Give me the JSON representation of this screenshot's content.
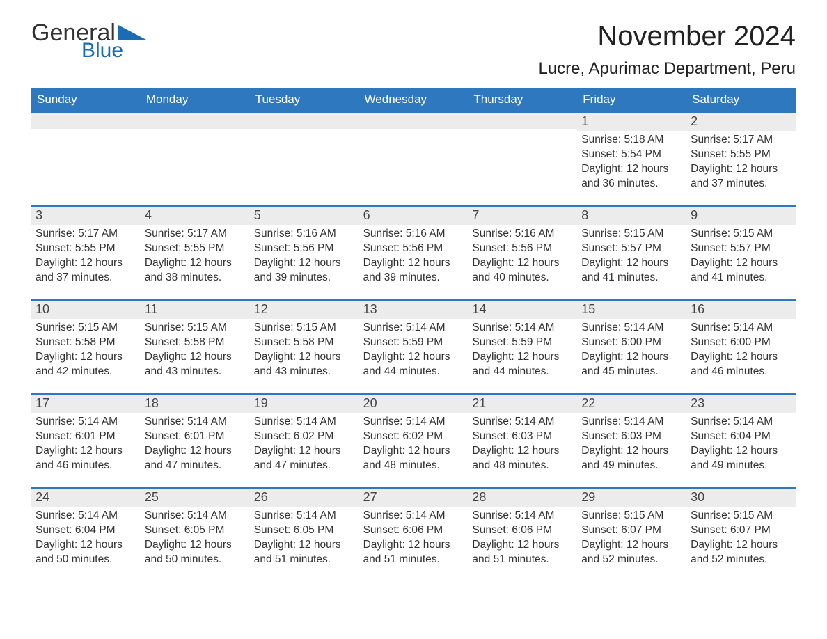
{
  "logo": {
    "word1": "General",
    "word2": "Blue",
    "accent_color": "#1b6cb3"
  },
  "title": "November 2024",
  "location": "Lucre, Apurimac Department, Peru",
  "colors": {
    "header_bg": "#2e78bf",
    "header_text": "#ffffff",
    "row_top_border": "#2e78bf",
    "daynum_bg": "#ececec",
    "text": "#333333",
    "page_bg": "#ffffff"
  },
  "fonts": {
    "title_size": 40,
    "location_size": 24,
    "dow_size": 17,
    "body_size": 15.5
  },
  "days_of_week": [
    "Sunday",
    "Monday",
    "Tuesday",
    "Wednesday",
    "Thursday",
    "Friday",
    "Saturday"
  ],
  "weeks": [
    [
      null,
      null,
      null,
      null,
      null,
      {
        "n": "1",
        "sunrise": "Sunrise: 5:18 AM",
        "sunset": "Sunset: 5:54 PM",
        "day1": "Daylight: 12 hours",
        "day2": "and 36 minutes."
      },
      {
        "n": "2",
        "sunrise": "Sunrise: 5:17 AM",
        "sunset": "Sunset: 5:55 PM",
        "day1": "Daylight: 12 hours",
        "day2": "and 37 minutes."
      }
    ],
    [
      {
        "n": "3",
        "sunrise": "Sunrise: 5:17 AM",
        "sunset": "Sunset: 5:55 PM",
        "day1": "Daylight: 12 hours",
        "day2": "and 37 minutes."
      },
      {
        "n": "4",
        "sunrise": "Sunrise: 5:17 AM",
        "sunset": "Sunset: 5:55 PM",
        "day1": "Daylight: 12 hours",
        "day2": "and 38 minutes."
      },
      {
        "n": "5",
        "sunrise": "Sunrise: 5:16 AM",
        "sunset": "Sunset: 5:56 PM",
        "day1": "Daylight: 12 hours",
        "day2": "and 39 minutes."
      },
      {
        "n": "6",
        "sunrise": "Sunrise: 5:16 AM",
        "sunset": "Sunset: 5:56 PM",
        "day1": "Daylight: 12 hours",
        "day2": "and 39 minutes."
      },
      {
        "n": "7",
        "sunrise": "Sunrise: 5:16 AM",
        "sunset": "Sunset: 5:56 PM",
        "day1": "Daylight: 12 hours",
        "day2": "and 40 minutes."
      },
      {
        "n": "8",
        "sunrise": "Sunrise: 5:15 AM",
        "sunset": "Sunset: 5:57 PM",
        "day1": "Daylight: 12 hours",
        "day2": "and 41 minutes."
      },
      {
        "n": "9",
        "sunrise": "Sunrise: 5:15 AM",
        "sunset": "Sunset: 5:57 PM",
        "day1": "Daylight: 12 hours",
        "day2": "and 41 minutes."
      }
    ],
    [
      {
        "n": "10",
        "sunrise": "Sunrise: 5:15 AM",
        "sunset": "Sunset: 5:58 PM",
        "day1": "Daylight: 12 hours",
        "day2": "and 42 minutes."
      },
      {
        "n": "11",
        "sunrise": "Sunrise: 5:15 AM",
        "sunset": "Sunset: 5:58 PM",
        "day1": "Daylight: 12 hours",
        "day2": "and 43 minutes."
      },
      {
        "n": "12",
        "sunrise": "Sunrise: 5:15 AM",
        "sunset": "Sunset: 5:58 PM",
        "day1": "Daylight: 12 hours",
        "day2": "and 43 minutes."
      },
      {
        "n": "13",
        "sunrise": "Sunrise: 5:14 AM",
        "sunset": "Sunset: 5:59 PM",
        "day1": "Daylight: 12 hours",
        "day2": "and 44 minutes."
      },
      {
        "n": "14",
        "sunrise": "Sunrise: 5:14 AM",
        "sunset": "Sunset: 5:59 PM",
        "day1": "Daylight: 12 hours",
        "day2": "and 44 minutes."
      },
      {
        "n": "15",
        "sunrise": "Sunrise: 5:14 AM",
        "sunset": "Sunset: 6:00 PM",
        "day1": "Daylight: 12 hours",
        "day2": "and 45 minutes."
      },
      {
        "n": "16",
        "sunrise": "Sunrise: 5:14 AM",
        "sunset": "Sunset: 6:00 PM",
        "day1": "Daylight: 12 hours",
        "day2": "and 46 minutes."
      }
    ],
    [
      {
        "n": "17",
        "sunrise": "Sunrise: 5:14 AM",
        "sunset": "Sunset: 6:01 PM",
        "day1": "Daylight: 12 hours",
        "day2": "and 46 minutes."
      },
      {
        "n": "18",
        "sunrise": "Sunrise: 5:14 AM",
        "sunset": "Sunset: 6:01 PM",
        "day1": "Daylight: 12 hours",
        "day2": "and 47 minutes."
      },
      {
        "n": "19",
        "sunrise": "Sunrise: 5:14 AM",
        "sunset": "Sunset: 6:02 PM",
        "day1": "Daylight: 12 hours",
        "day2": "and 47 minutes."
      },
      {
        "n": "20",
        "sunrise": "Sunrise: 5:14 AM",
        "sunset": "Sunset: 6:02 PM",
        "day1": "Daylight: 12 hours",
        "day2": "and 48 minutes."
      },
      {
        "n": "21",
        "sunrise": "Sunrise: 5:14 AM",
        "sunset": "Sunset: 6:03 PM",
        "day1": "Daylight: 12 hours",
        "day2": "and 48 minutes."
      },
      {
        "n": "22",
        "sunrise": "Sunrise: 5:14 AM",
        "sunset": "Sunset: 6:03 PM",
        "day1": "Daylight: 12 hours",
        "day2": "and 49 minutes."
      },
      {
        "n": "23",
        "sunrise": "Sunrise: 5:14 AM",
        "sunset": "Sunset: 6:04 PM",
        "day1": "Daylight: 12 hours",
        "day2": "and 49 minutes."
      }
    ],
    [
      {
        "n": "24",
        "sunrise": "Sunrise: 5:14 AM",
        "sunset": "Sunset: 6:04 PM",
        "day1": "Daylight: 12 hours",
        "day2": "and 50 minutes."
      },
      {
        "n": "25",
        "sunrise": "Sunrise: 5:14 AM",
        "sunset": "Sunset: 6:05 PM",
        "day1": "Daylight: 12 hours",
        "day2": "and 50 minutes."
      },
      {
        "n": "26",
        "sunrise": "Sunrise: 5:14 AM",
        "sunset": "Sunset: 6:05 PM",
        "day1": "Daylight: 12 hours",
        "day2": "and 51 minutes."
      },
      {
        "n": "27",
        "sunrise": "Sunrise: 5:14 AM",
        "sunset": "Sunset: 6:06 PM",
        "day1": "Daylight: 12 hours",
        "day2": "and 51 minutes."
      },
      {
        "n": "28",
        "sunrise": "Sunrise: 5:14 AM",
        "sunset": "Sunset: 6:06 PM",
        "day1": "Daylight: 12 hours",
        "day2": "and 51 minutes."
      },
      {
        "n": "29",
        "sunrise": "Sunrise: 5:15 AM",
        "sunset": "Sunset: 6:07 PM",
        "day1": "Daylight: 12 hours",
        "day2": "and 52 minutes."
      },
      {
        "n": "30",
        "sunrise": "Sunrise: 5:15 AM",
        "sunset": "Sunset: 6:07 PM",
        "day1": "Daylight: 12 hours",
        "day2": "and 52 minutes."
      }
    ]
  ]
}
